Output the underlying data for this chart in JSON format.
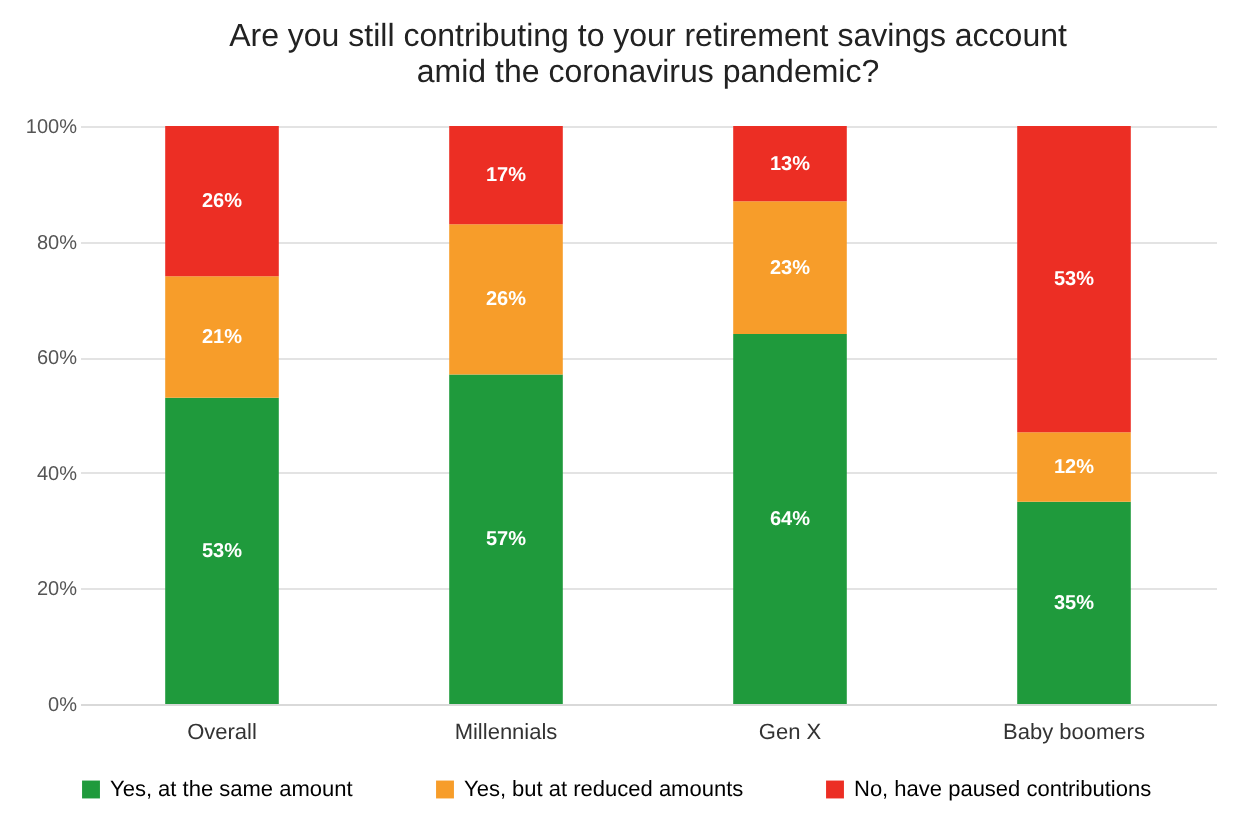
{
  "chart_data": {
    "type": "bar",
    "title": "Are you still contributing to your retirement savings account amid the coronavirus pandemic?",
    "categories": [
      "Overall",
      "Millennials",
      "Gen X",
      "Baby boomers"
    ],
    "stacked": true,
    "series": [
      {
        "name": "Yes, at the same amount",
        "color": "#1f9a3c",
        "values": [
          53,
          57,
          64,
          35
        ],
        "value_labels": [
          "53%",
          "57%",
          "64%",
          "35%"
        ]
      },
      {
        "name": "Yes, but at reduced amounts",
        "color": "#f79d2a",
        "values": [
          21,
          26,
          23,
          12
        ],
        "value_labels": [
          "21%",
          "26%",
          "23%",
          "12%"
        ]
      },
      {
        "name": "No, have paused contributions",
        "color": "#ec2e24",
        "values": [
          26,
          17,
          13,
          53
        ],
        "value_labels": [
          "26%",
          "17%",
          "13%",
          "53%"
        ]
      }
    ],
    "ylim": [
      0,
      100
    ],
    "yticks": [
      {
        "value": 0,
        "label": "0%"
      },
      {
        "value": 20,
        "label": "20%"
      },
      {
        "value": 40,
        "label": "40%"
      },
      {
        "value": 60,
        "label": "60%"
      },
      {
        "value": 80,
        "label": "80%"
      },
      {
        "value": 100,
        "label": "100%"
      }
    ],
    "grid": "y",
    "legend": "bottom"
  }
}
